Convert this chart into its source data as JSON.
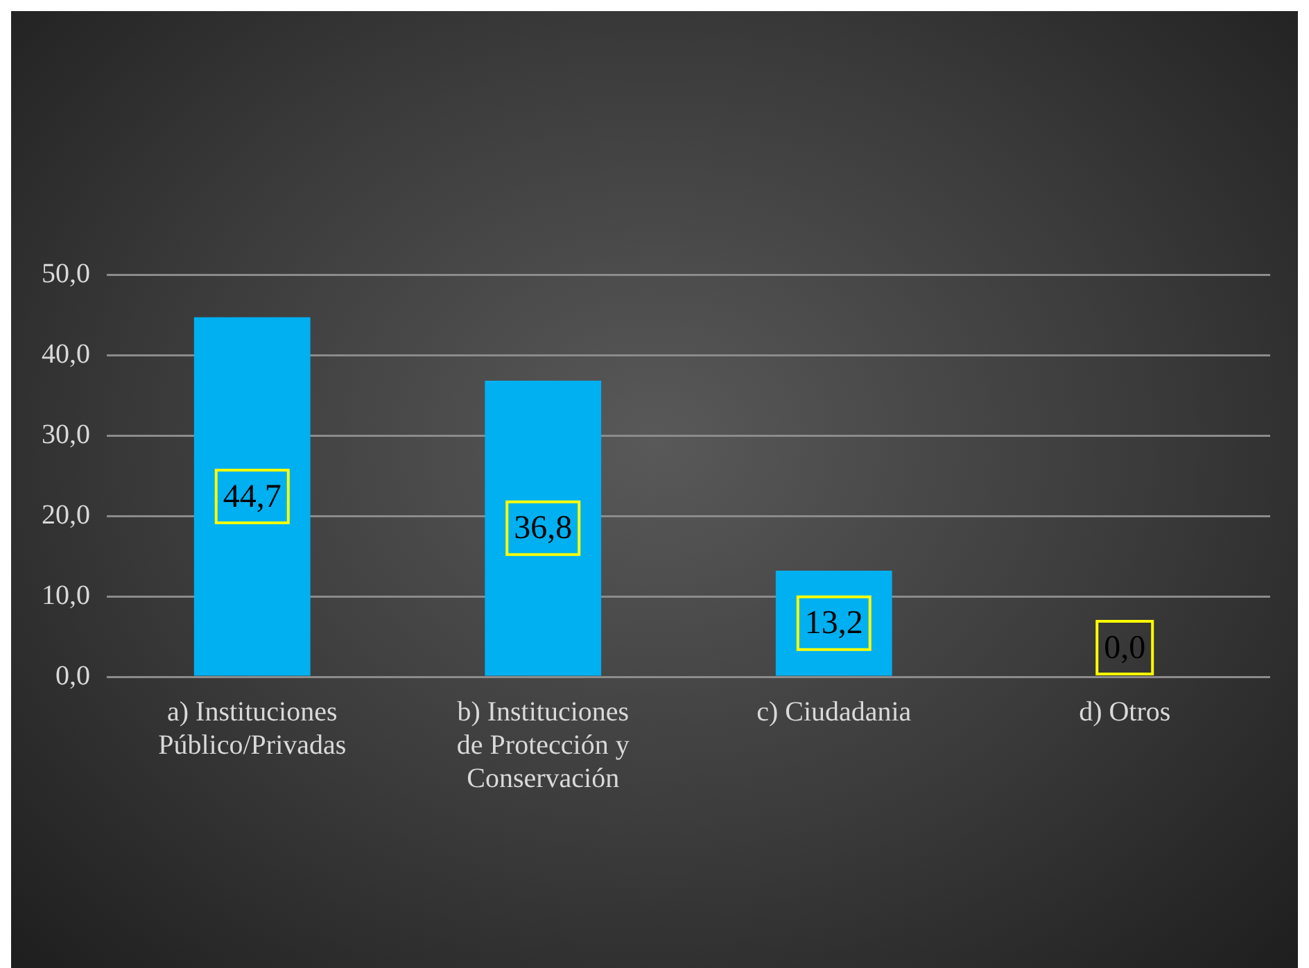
{
  "chart_data": {
    "type": "bar",
    "categories": [
      "a) Instituciones Público/Privadas",
      "b) Instituciones de Protección y Conservación",
      "c) Ciudadania",
      "d) Otros"
    ],
    "values": [
      44.7,
      36.8,
      13.2,
      0.0
    ],
    "value_labels": [
      "44,7",
      "36,8",
      "13,2",
      "0,0"
    ],
    "color": "#00b0f0",
    "ylim": [
      0,
      50
    ],
    "yticks": [
      {
        "value": 0,
        "label": "0,0"
      },
      {
        "value": 10,
        "label": "10,0"
      },
      {
        "value": 20,
        "label": "20,0"
      },
      {
        "value": 30,
        "label": "30,0"
      },
      {
        "value": 40,
        "label": "40,0"
      },
      {
        "value": 50,
        "label": "50,0"
      }
    ],
    "grid": "y",
    "legend": false
  }
}
